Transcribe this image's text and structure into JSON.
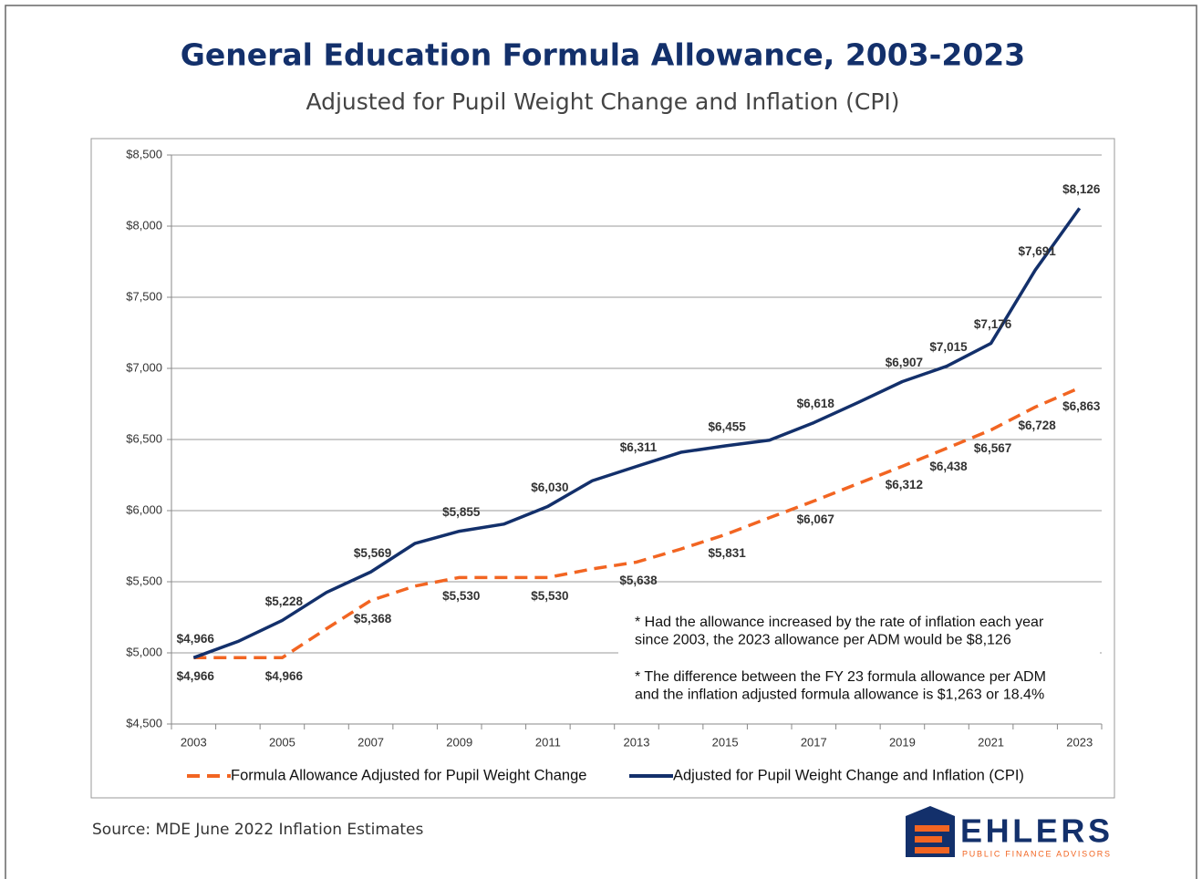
{
  "chart_data": {
    "type": "line",
    "title": "General Education Formula Allowance, 2003-2023",
    "subtitle": "Adjusted for Pupil Weight Change and Inflation (CPI)",
    "categories": [
      "2003",
      null,
      "2005",
      null,
      "2007",
      null,
      "2009",
      null,
      "2011",
      null,
      "2013",
      null,
      "2015",
      null,
      "2017",
      null,
      "2019",
      null,
      "2021",
      null,
      "2023"
    ],
    "series": [
      {
        "name": "Formula Allowance Adjusted for Pupil Weight Change",
        "color": "#f26522",
        "dashed": true,
        "label_side": "below",
        "values": [
          4966,
          4966,
          4966,
          5170,
          5368,
          5470,
          5530,
          5530,
          5530,
          5590,
          5638,
          5730,
          5831,
          5950,
          6067,
          6190,
          6312,
          6438,
          6567,
          6728,
          6863
        ],
        "value_labels": [
          "$4,966",
          null,
          "$4,966",
          null,
          "$5,368",
          null,
          "$5,530",
          null,
          "$5,530",
          null,
          "$5,638",
          null,
          "$5,831",
          null,
          "$6,067",
          null,
          "$6,312",
          "$6,438",
          "$6,567",
          "$6,728",
          "$6,863"
        ]
      },
      {
        "name": "Adjusted for Pupil Weight Change and Inflation (CPI)",
        "color": "#13306b",
        "dashed": false,
        "label_side": "above",
        "values": [
          4966,
          5080,
          5228,
          5425,
          5569,
          5770,
          5855,
          5905,
          6030,
          6210,
          6311,
          6410,
          6455,
          6495,
          6618,
          6760,
          6907,
          7015,
          7176,
          7691,
          8126
        ],
        "value_labels": [
          "$4,966",
          null,
          "$5,228",
          null,
          "$5,569",
          null,
          "$5,855",
          null,
          "$6,030",
          null,
          "$6,311",
          null,
          "$6,455",
          null,
          "$6,618",
          null,
          "$6,907",
          "$7,015",
          "$7,176",
          "$7,691",
          "$8,126"
        ]
      }
    ],
    "ylim": [
      4500,
      8500
    ],
    "yticks": [
      {
        "value": 4500,
        "label": "$4,500"
      },
      {
        "value": 5000,
        "label": "$5,000"
      },
      {
        "value": 5500,
        "label": "$5,500"
      },
      {
        "value": 6000,
        "label": "$6,000"
      },
      {
        "value": 6500,
        "label": "$6,500"
      },
      {
        "value": 7000,
        "label": "$7,000"
      },
      {
        "value": 7500,
        "label": "$7,500"
      },
      {
        "value": 8000,
        "label": "$8,000"
      },
      {
        "value": 8500,
        "label": "$8,500"
      }
    ],
    "grid": true,
    "legend": "bottom",
    "annotations": [
      [
        "* Had the allowance increased by the rate of inflation each year",
        "since 2003, the 2023 allowance per ADM would be $8,126"
      ],
      [
        "* The difference  between  the FY 23 formula allowance per ADM",
        "and the inflation adjusted formula allowance is $1,263 or 18.4%"
      ]
    ],
    "source": "Source: MDE June 2022 Inflation Estimates",
    "logo": {
      "name": "EHLERS",
      "tagline": "PUBLIC FINANCE ADVISORS"
    }
  }
}
